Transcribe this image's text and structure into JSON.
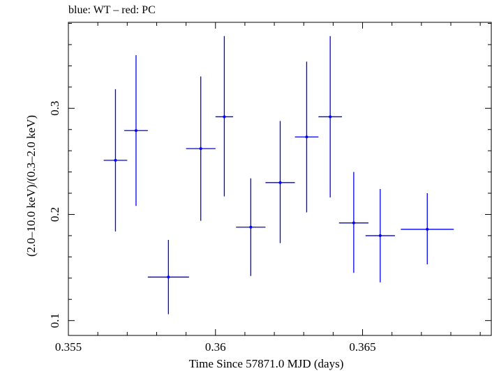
{
  "chart_data": {
    "type": "scatter",
    "title": "blue: WT – red: PC",
    "xlabel": "Time Since 57871.0 MJD (days)",
    "ylabel": "(2.0–10.0 keV)/(0.3–2.0 keV)",
    "xlim": [
      0.355,
      0.3694
    ],
    "ylim": [
      0.086,
      0.381
    ],
    "xticks": [
      0.355,
      0.36,
      0.365
    ],
    "xtick_labels": [
      "0.355",
      "0.36",
      "0.365"
    ],
    "yticks": [
      0.1,
      0.2,
      0.3
    ],
    "ytick_labels": [
      "0.1",
      "0.2",
      "0.3"
    ],
    "grid": false,
    "series": [
      {
        "color": "#0000ee",
        "points": [
          {
            "x": 0.3566,
            "xerr": 0.0004,
            "y": 0.251,
            "ylo": 0.184,
            "yhi": 0.318
          },
          {
            "x": 0.3573,
            "xerr": 0.0004,
            "y": 0.279,
            "ylo": 0.208,
            "yhi": 0.35
          },
          {
            "x": 0.3584,
            "xerr": 0.0007,
            "y": 0.141,
            "ylo": 0.106,
            "yhi": 0.176
          },
          {
            "x": 0.3595,
            "xerr": 0.0005,
            "y": 0.262,
            "ylo": 0.194,
            "yhi": 0.33
          },
          {
            "x": 0.3603,
            "xerr": 0.0003,
            "y": 0.292,
            "ylo": 0.217,
            "yhi": 0.368
          },
          {
            "x": 0.3612,
            "xerr": 0.0005,
            "y": 0.188,
            "ylo": 0.142,
            "yhi": 0.234
          },
          {
            "x": 0.3622,
            "xerr": 0.0005,
            "y": 0.23,
            "ylo": 0.173,
            "yhi": 0.288
          },
          {
            "x": 0.3631,
            "xerr": 0.0004,
            "y": 0.273,
            "ylo": 0.202,
            "yhi": 0.344
          },
          {
            "x": 0.3639,
            "xerr": 0.0004,
            "y": 0.292,
            "ylo": 0.216,
            "yhi": 0.368
          },
          {
            "x": 0.3647,
            "xerr": 0.0005,
            "y": 0.192,
            "ylo": 0.145,
            "yhi": 0.24
          },
          {
            "x": 0.3656,
            "xerr": 0.0005,
            "y": 0.18,
            "ylo": 0.136,
            "yhi": 0.224
          },
          {
            "x": 0.3672,
            "xerr": 0.0009,
            "y": 0.186,
            "ylo": 0.153,
            "yhi": 0.22
          }
        ]
      }
    ]
  }
}
